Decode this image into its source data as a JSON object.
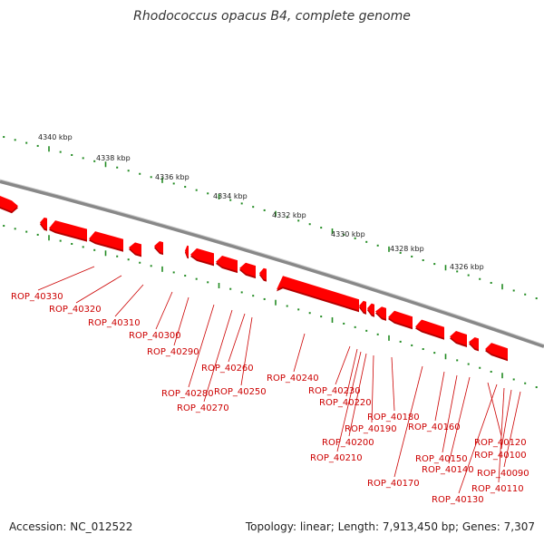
{
  "title": "Rhodococcus opacus B4, complete genome",
  "accession": "Accession: NC_012522",
  "topology": "Topology: linear; Length: 7,913,450 bp; Genes: 7,307",
  "colors": {
    "backbone": "#888888",
    "gene": "#ff0000",
    "gene_shadow": "#b30000",
    "tick": "#228b22",
    "label": "#cc0000"
  },
  "scale_labels": [
    "4340 kbp",
    "4338 kbp",
    "4336 kbp",
    "4334 kbp",
    "4332 kbp",
    "4330 kbp",
    "4328 kbp",
    "4326 kbp"
  ],
  "gene_labels": [
    "ROP_40330",
    "ROP_40320",
    "ROP_40310",
    "ROP_40300",
    "ROP_40290",
    "ROP_40280",
    "ROP_40270",
    "ROP_40260",
    "ROP_40250",
    "ROP_40240",
    "ROP_40230",
    "ROP_40220",
    "ROP_40210",
    "ROP_40200",
    "ROP_40190",
    "ROP_40180",
    "ROP_40170",
    "ROP_40160",
    "ROP_40150",
    "ROP_40140",
    "ROP_40130",
    "ROP_40120",
    "ROP_40110",
    "ROP_40100",
    "ROP_40090"
  ]
}
